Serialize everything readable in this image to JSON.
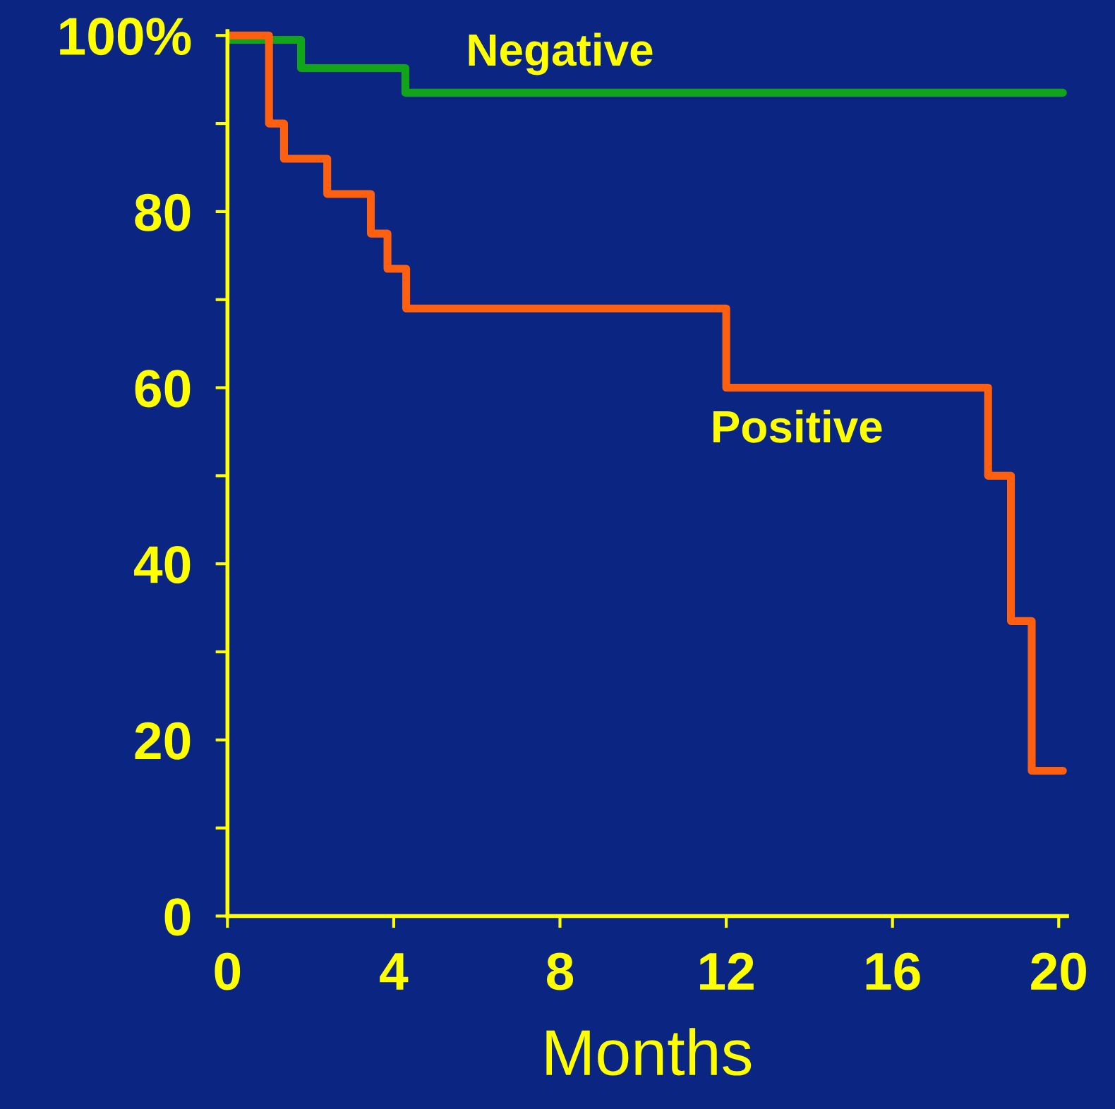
{
  "chart_data": {
    "type": "step",
    "xlabel": "Months",
    "xlim": [
      0,
      20.2
    ],
    "ylim": [
      0,
      100.5
    ],
    "xticks": [
      0,
      4,
      8,
      12,
      16,
      20
    ],
    "yticks": [
      0,
      {
        "value": 10,
        "label": null
      },
      20,
      {
        "value": 30,
        "label": null
      },
      40,
      {
        "value": 50,
        "label": null
      },
      60,
      {
        "value": 70,
        "label": null
      },
      80,
      {
        "value": 90,
        "label": null
      },
      {
        "value": 100,
        "label": "100%"
      }
    ],
    "grid": false,
    "legend": false,
    "series": [
      {
        "name": "Negative",
        "color": "#11a619",
        "x": [
          0,
          1.77,
          4.28,
          20.1
        ],
        "values": [
          99.5,
          96.3,
          93.5,
          93.5
        ]
      },
      {
        "name": "Positive",
        "color": "#ff6010",
        "x": [
          0,
          1.0,
          1.36,
          2.4,
          3.45,
          3.85,
          4.3,
          12.0,
          18.3,
          18.85,
          19.35,
          20.1
        ],
        "values": [
          100,
          90,
          86,
          82,
          77.5,
          73.5,
          69,
          60,
          50,
          33.5,
          16.5,
          16.5
        ]
      }
    ]
  }
}
